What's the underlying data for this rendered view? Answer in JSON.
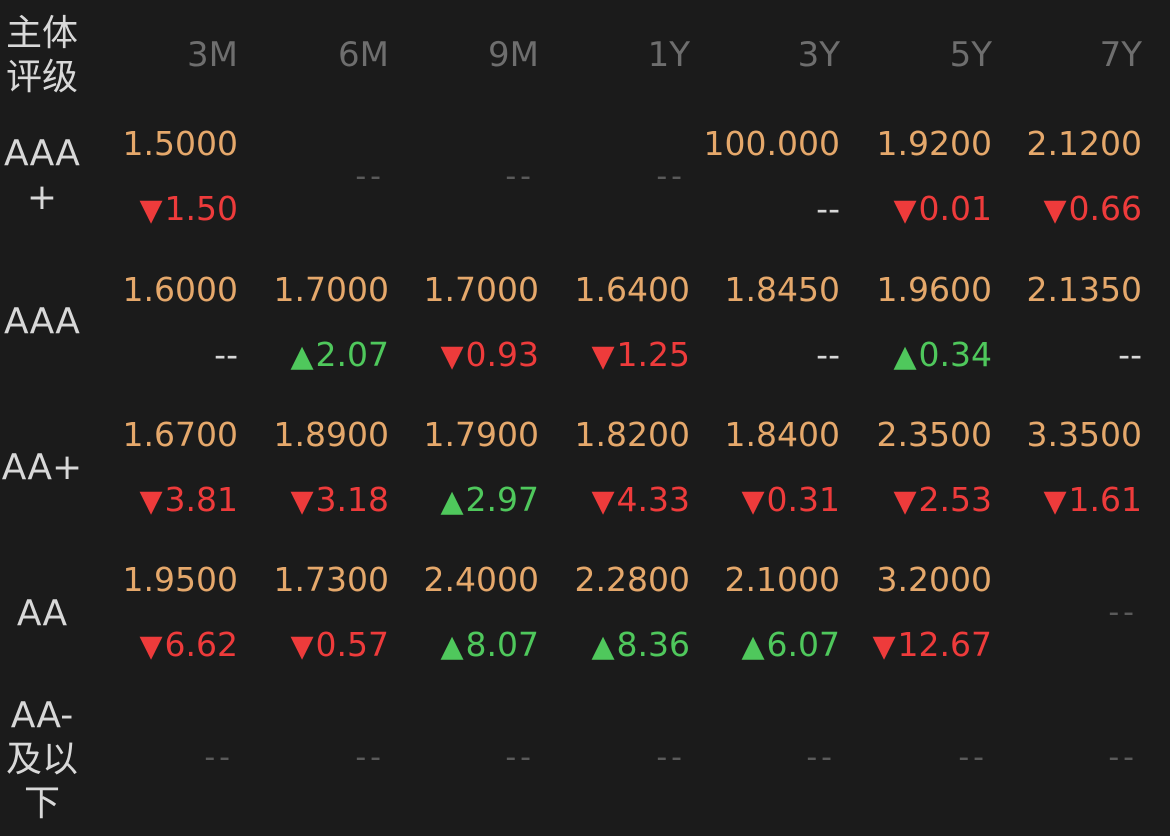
{
  "header": {
    "rating_label": "主体\n评级",
    "columns": [
      "3M",
      "6M",
      "9M",
      "1Y",
      "3Y",
      "5Y",
      "7Y"
    ]
  },
  "rows": [
    {
      "rating": "AAA\n+",
      "cells": [
        {
          "yield": "1.5000",
          "change": "1.50",
          "dir": "down"
        },
        {
          "empty": "--"
        },
        {
          "empty": "--"
        },
        {
          "empty": "--"
        },
        {
          "yield": "100.000",
          "change": "--",
          "dir": "flat"
        },
        {
          "yield": "1.9200",
          "change": "0.01",
          "dir": "down"
        },
        {
          "yield": "2.1200",
          "change": "0.66",
          "dir": "down"
        }
      ]
    },
    {
      "rating": "AAA",
      "cells": [
        {
          "yield": "1.6000",
          "change": "--",
          "dir": "flat"
        },
        {
          "yield": "1.7000",
          "change": "2.07",
          "dir": "up"
        },
        {
          "yield": "1.7000",
          "change": "0.93",
          "dir": "down"
        },
        {
          "yield": "1.6400",
          "change": "1.25",
          "dir": "down"
        },
        {
          "yield": "1.8450",
          "change": "--",
          "dir": "flat"
        },
        {
          "yield": "1.9600",
          "change": "0.34",
          "dir": "up"
        },
        {
          "yield": "2.1350",
          "change": "--",
          "dir": "flat"
        }
      ]
    },
    {
      "rating": "AA+",
      "cells": [
        {
          "yield": "1.6700",
          "change": "3.81",
          "dir": "down"
        },
        {
          "yield": "1.8900",
          "change": "3.18",
          "dir": "down"
        },
        {
          "yield": "1.7900",
          "change": "2.97",
          "dir": "up"
        },
        {
          "yield": "1.8200",
          "change": "4.33",
          "dir": "down"
        },
        {
          "yield": "1.8400",
          "change": "0.31",
          "dir": "down"
        },
        {
          "yield": "2.3500",
          "change": "2.53",
          "dir": "down"
        },
        {
          "yield": "3.3500",
          "change": "1.61",
          "dir": "down"
        }
      ]
    },
    {
      "rating": "AA",
      "cells": [
        {
          "yield": "1.9500",
          "change": "6.62",
          "dir": "down"
        },
        {
          "yield": "1.7300",
          "change": "0.57",
          "dir": "down"
        },
        {
          "yield": "2.4000",
          "change": "8.07",
          "dir": "up"
        },
        {
          "yield": "2.2800",
          "change": "8.36",
          "dir": "up"
        },
        {
          "yield": "2.1000",
          "change": "6.07",
          "dir": "up"
        },
        {
          "yield": "3.2000",
          "change": "12.67",
          "dir": "down"
        },
        {
          "empty": "--"
        }
      ]
    },
    {
      "rating": "AA-\n及以\n下",
      "cells": [
        {
          "empty": "--"
        },
        {
          "empty": "--"
        },
        {
          "empty": "--"
        },
        {
          "empty": "--"
        },
        {
          "empty": "--"
        },
        {
          "empty": "--"
        },
        {
          "empty": "--"
        }
      ]
    }
  ],
  "colors": {
    "background": "#1b1b1b",
    "yield": "#e5a86b",
    "up": "#4fc85c",
    "down": "#ee3b3b",
    "header": "#6e6e6e"
  },
  "icons": {
    "up": "triangle-up-icon",
    "down": "triangle-down-icon"
  }
}
